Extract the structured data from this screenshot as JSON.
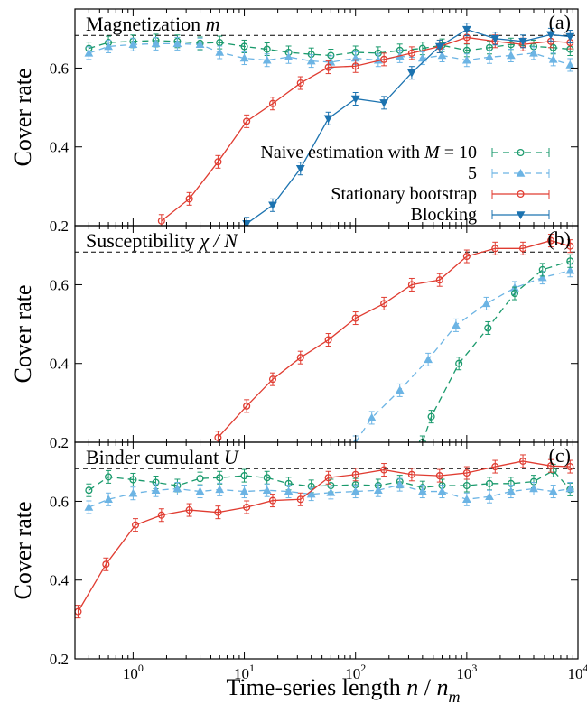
{
  "chart_data": {
    "type": "line",
    "xlabel": "Time-series length n / n",
    "xlabel_sub": "m",
    "xscale": "log",
    "xlim": [
      0.3,
      10000
    ],
    "x_ticks": [
      1,
      10,
      100,
      1000,
      10000
    ],
    "x_tick_labels": [
      "10",
      "10",
      "10",
      "10",
      "10"
    ],
    "x_tick_exponents": [
      "0",
      "1",
      "2",
      "3",
      "4"
    ],
    "reference_line_y": 0.683,
    "legend": {
      "placement": "center-right of panel (a)",
      "entries": [
        {
          "label": "Naive estimation with ",
          "label_var": "M",
          "label_rest": " = 10",
          "series": "naive10"
        },
        {
          "label": "5",
          "series": "naive5"
        },
        {
          "label": "Stationary bootstrap",
          "series": "bootstrap"
        },
        {
          "label": "Blocking",
          "series": "blocking"
        }
      ]
    },
    "styles": {
      "naive10": {
        "color": "#1a9a6c",
        "dash": "7,5",
        "marker": "circle-open"
      },
      "naive5": {
        "color": "#6cb4e4",
        "dash": "7,5",
        "marker": "triangle-up"
      },
      "bootstrap": {
        "color": "#e03c31",
        "dash": "",
        "marker": "circle-open"
      },
      "blocking": {
        "color": "#1c73b0",
        "dash": "",
        "marker": "triangle-down"
      },
      "reference": {
        "color": "#000000",
        "dash": "5,4"
      }
    },
    "panels": [
      {
        "tag": "(a)",
        "title": "Magnetization ",
        "title_var": "m",
        "ylabel": "Cover rate",
        "ylim": [
          0.2,
          0.75
        ],
        "y_ticks": [
          0.2,
          0.4,
          0.6
        ],
        "y_tick_labels": [
          "0.2",
          "0.4",
          "0.6"
        ],
        "series": [
          {
            "id": "naive10",
            "x": [
              0.4,
              0.6,
              1.0,
              1.6,
              2.5,
              4,
              6,
              10,
              16,
              25,
              40,
              60,
              100,
              160,
              250,
              400,
              600,
              1000,
              1600,
              2500,
              4000,
              6000,
              8500
            ],
            "y": [
              0.65,
              0.665,
              0.668,
              0.67,
              0.668,
              0.663,
              0.665,
              0.655,
              0.648,
              0.64,
              0.635,
              0.632,
              0.64,
              0.638,
              0.645,
              0.65,
              0.658,
              0.645,
              0.652,
              0.66,
              0.655,
              0.652,
              0.648
            ]
          },
          {
            "id": "naive5",
            "x": [
              0.4,
              0.6,
              1.0,
              1.6,
              2.5,
              4,
              6,
              10,
              16,
              25,
              40,
              60,
              100,
              160,
              250,
              400,
              600,
              1000,
              1600,
              2500,
              4000,
              6000,
              8500
            ],
            "y": [
              0.638,
              0.655,
              0.66,
              0.662,
              0.662,
              0.66,
              0.64,
              0.625,
              0.62,
              0.628,
              0.618,
              0.615,
              0.625,
              0.62,
              0.63,
              0.625,
              0.632,
              0.62,
              0.628,
              0.632,
              0.638,
              0.622,
              0.608
            ]
          },
          {
            "id": "bootstrap",
            "x": [
              1.8,
              3.2,
              5.8,
              10.5,
              18,
              32,
              57,
              100,
              180,
              320,
              570,
              1000,
              1800,
              3200,
              5700,
              8500
            ],
            "y": [
              0.212,
              0.268,
              0.362,
              0.465,
              0.51,
              0.562,
              0.602,
              0.605,
              0.622,
              0.638,
              0.655,
              0.678,
              0.668,
              0.66,
              0.668,
              0.665
            ]
          },
          {
            "id": "blocking",
            "x": [
              10.5,
              18,
              32,
              57,
              100,
              180,
              320,
              570,
              1000,
              1800,
              3200,
              5700,
              8500
            ],
            "y": [
              0.205,
              0.252,
              0.345,
              0.472,
              0.522,
              0.512,
              0.588,
              0.655,
              0.698,
              0.675,
              0.668,
              0.685,
              0.68
            ]
          }
        ]
      },
      {
        "tag": "(b)",
        "title": "Susceptibility ",
        "title_var": "χ / N",
        "ylabel": "Cover rate",
        "ylim": [
          0.2,
          0.75
        ],
        "y_ticks": [
          0.2,
          0.4,
          0.6
        ],
        "y_tick_labels": [
          "0.2",
          "0.4",
          "0.6"
        ],
        "series": [
          {
            "id": "bootstrap",
            "x": [
              5.8,
              10.5,
              18,
              32,
              57,
              100,
              180,
              320,
              570,
              1000,
              1800,
              3200,
              5700,
              8500
            ],
            "y": [
              0.212,
              0.292,
              0.36,
              0.415,
              0.46,
              0.515,
              0.552,
              0.6,
              0.612,
              0.672,
              0.692,
              0.692,
              0.712,
              0.698
            ]
          },
          {
            "id": "naive5",
            "x": [
              100,
              140,
              250,
              450,
              800,
              1500,
              2700,
              4800,
              8500
            ],
            "y": [
              0.2,
              0.262,
              0.332,
              0.41,
              0.497,
              0.552,
              0.592,
              0.618,
              0.636
            ]
          },
          {
            "id": "naive10",
            "x": [
              400,
              480,
              850,
              1550,
              2700,
              4800,
              8500
            ],
            "y": [
              0.2,
              0.265,
              0.4,
              0.49,
              0.578,
              0.638,
              0.66
            ]
          }
        ]
      },
      {
        "tag": "(c)",
        "title": "Binder cumulant ",
        "title_var": "U",
        "ylabel": "Cover rate",
        "ylim": [
          0.2,
          0.75
        ],
        "y_ticks": [
          0.2,
          0.4,
          0.6
        ],
        "y_tick_labels": [
          "0.2",
          "0.4",
          "0.6"
        ],
        "series": [
          {
            "id": "naive10",
            "x": [
              0.4,
              0.6,
              1.0,
              1.6,
              2.5,
              4,
              6,
              10,
              16,
              25,
              40,
              60,
              100,
              160,
              250,
              400,
              600,
              1000,
              1600,
              2500,
              4000,
              6000,
              8500
            ],
            "y": [
              0.628,
              0.662,
              0.655,
              0.648,
              0.64,
              0.658,
              0.66,
              0.665,
              0.66,
              0.645,
              0.638,
              0.64,
              0.642,
              0.64,
              0.65,
              0.635,
              0.64,
              0.64,
              0.645,
              0.645,
              0.65,
              0.678,
              0.63
            ]
          },
          {
            "id": "naive5",
            "x": [
              0.4,
              0.6,
              1.0,
              1.6,
              2.5,
              4,
              6,
              10,
              16,
              25,
              40,
              60,
              100,
              160,
              250,
              400,
              600,
              1000,
              1600,
              2500,
              4000,
              6000,
              8500
            ],
            "y": [
              0.585,
              0.605,
              0.62,
              0.628,
              0.632,
              0.625,
              0.63,
              0.625,
              0.628,
              0.625,
              0.618,
              0.622,
              0.625,
              0.628,
              0.642,
              0.625,
              0.625,
              0.605,
              0.612,
              0.625,
              0.632,
              0.625,
              0.632
            ]
          },
          {
            "id": "bootstrap",
            "x": [
              0.32,
              0.57,
              1.05,
              1.8,
              3.2,
              5.8,
              10.5,
              18,
              32,
              57,
              100,
              180,
              320,
              570,
              1000,
              1800,
              3200,
              5700,
              8500
            ],
            "y": [
              0.32,
              0.44,
              0.54,
              0.565,
              0.578,
              0.572,
              0.585,
              0.602,
              0.605,
              0.66,
              0.668,
              0.68,
              0.668,
              0.665,
              0.672,
              0.688,
              0.702,
              0.69,
              0.688
            ]
          }
        ]
      }
    ]
  }
}
